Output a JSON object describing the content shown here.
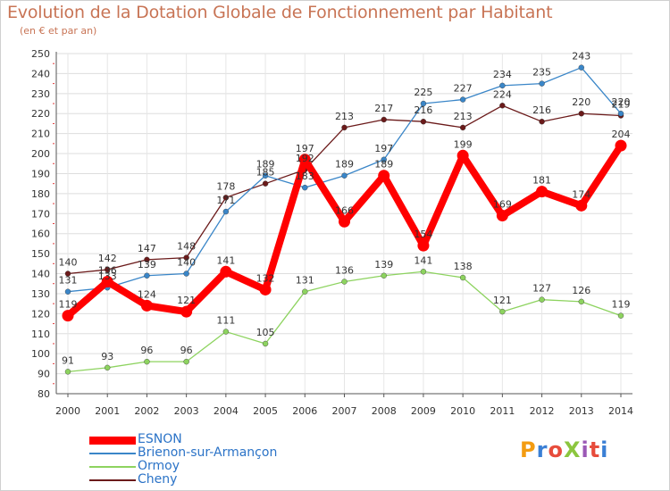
{
  "header": {
    "title": "Evolution de la Dotation Globale de Fonctionnement par Habitant",
    "subtitle": "(en € et par an)"
  },
  "brand": {
    "text": "ProXiti",
    "colors": [
      "#f39c12",
      "#3a7fd5",
      "#e74c3c",
      "#8cc63f",
      "#9b59b6",
      "#e74c3c",
      "#3a7fd5"
    ]
  },
  "chart_data": {
    "type": "line",
    "title": "Evolution de la Dotation Globale de Fonctionnement par Habitant",
    "subtitle": "(en € et par an)",
    "xlabel": "",
    "ylabel": "",
    "x": [
      "2000",
      "2001",
      "2002",
      "2003",
      "2004",
      "2005",
      "2006",
      "2007",
      "2008",
      "2009",
      "2010",
      "2011",
      "2012",
      "2013",
      "2014"
    ],
    "ylim": [
      80,
      250
    ],
    "yticks": [
      80,
      90,
      100,
      110,
      120,
      130,
      140,
      150,
      160,
      170,
      180,
      190,
      200,
      210,
      220,
      230,
      240,
      250
    ],
    "grid": true,
    "legend_position": "bottom-left",
    "series": [
      {
        "name": "ESNON",
        "color": "#ff0000",
        "values": [
          119,
          136,
          124,
          121,
          141,
          132,
          197,
          166,
          189,
          154,
          199,
          169,
          181,
          174,
          204
        ]
      },
      {
        "name": "Brienon-sur-Armançon",
        "color": "#3a86c8",
        "values": [
          131,
          133,
          139,
          140,
          171,
          189,
          183,
          189,
          197,
          225,
          227,
          234,
          235,
          243,
          220
        ]
      },
      {
        "name": "Ormoy",
        "color": "#8dd35f",
        "values": [
          91,
          93,
          96,
          96,
          111,
          105,
          131,
          136,
          139,
          141,
          138,
          121,
          127,
          126,
          119
        ]
      },
      {
        "name": "Cheny",
        "color": "#6b1a1a",
        "values": [
          140,
          142,
          147,
          148,
          178,
          185,
          192,
          213,
          217,
          216,
          213,
          224,
          216,
          220,
          219
        ]
      }
    ],
    "data_labels": [
      [
        "119",
        "136",
        "124",
        "121",
        "141",
        "132",
        "197",
        "166",
        "189",
        "154",
        "199",
        "169",
        "181",
        "174",
        "204"
      ],
      [
        "131",
        "133",
        "139",
        "140",
        "171",
        "189",
        "183",
        "189",
        "197",
        "225",
        "227",
        "234",
        "235",
        "243",
        "220"
      ],
      [
        "91",
        "93",
        "96",
        "96",
        "111",
        "105",
        "131",
        "136",
        "139",
        "141",
        "138",
        "121",
        "127",
        "126",
        "119"
      ],
      [
        "140",
        "142",
        "147",
        "148",
        "178",
        "185",
        "192",
        "213",
        "217",
        "216",
        "213",
        "224",
        "216",
        "220",
        "219"
      ]
    ]
  }
}
